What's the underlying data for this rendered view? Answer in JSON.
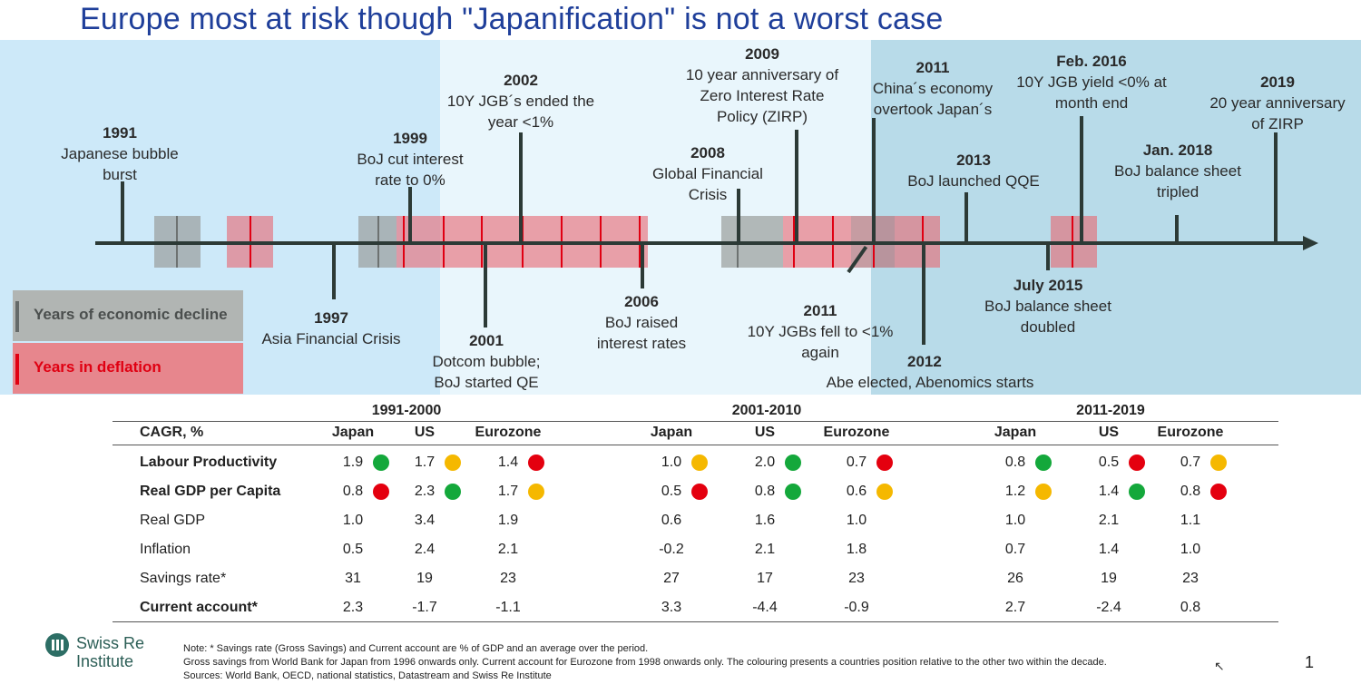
{
  "title": "Europe most at risk though \"Japanification\" is not a worst case",
  "colors": {
    "title": "#1f3f9a",
    "gray_block": "#9ba09e",
    "red_block": "#e86670",
    "deflation_red": "#e00012",
    "good": "#14a83b",
    "neutral": "#f5b800",
    "bad": "#e4000f"
  },
  "events_above": [
    {
      "year": "1991",
      "text": [
        "Japanese bubble",
        "burst"
      ]
    },
    {
      "year": "1999",
      "text": [
        "BoJ cut interest",
        "rate to 0%"
      ]
    },
    {
      "year": "2002",
      "text": [
        "10Y JGB´s ended the",
        "year <1%"
      ]
    },
    {
      "year": "2008",
      "text": [
        "Global Financial",
        "Crisis"
      ]
    },
    {
      "year": "2009",
      "text": [
        "10 year anniversary of",
        "Zero Interest Rate",
        "Policy (ZIRP)"
      ]
    },
    {
      "year": "2011",
      "text": [
        "China´s economy",
        "overtook Japan´s"
      ]
    },
    {
      "year": "2013",
      "text": [
        "BoJ launched QQE"
      ]
    },
    {
      "year": "Feb. 2016",
      "text": [
        "10Y JGB yield <0% at",
        "month end"
      ]
    },
    {
      "year": "Jan. 2018",
      "text": [
        "BoJ balance sheet",
        "tripled"
      ]
    },
    {
      "year": "2019",
      "text": [
        "20 year anniversary",
        "of ZIRP"
      ]
    }
  ],
  "events_below": [
    {
      "year": "1997",
      "text": [
        "Asia Financial Crisis"
      ]
    },
    {
      "year": "2001",
      "text": [
        "Dotcom bubble;",
        "BoJ started QE"
      ]
    },
    {
      "year": "2006",
      "text": [
        "BoJ raised",
        "interest rates"
      ]
    },
    {
      "year": "2011",
      "text": [
        "10Y JGBs fell to <1%",
        "again"
      ]
    },
    {
      "year": "2012",
      "text": [
        "Abe elected, Abenomics starts"
      ]
    },
    {
      "year": "July 2015",
      "text": [
        "BoJ balance sheet",
        "doubled"
      ]
    }
  ],
  "legend": {
    "decline": "Years of economic decline",
    "deflation": "Years in deflation"
  },
  "table": {
    "corner": "CAGR, %",
    "periods": [
      "1991-2000",
      "2001-2010",
      "2011-2019"
    ],
    "countries": [
      "Japan",
      "US",
      "Eurozone"
    ],
    "rows": [
      {
        "label": "Labour Productivity",
        "bold": true,
        "values": [
          "1.9",
          "1.7",
          "1.4",
          "1.0",
          "2.0",
          "0.7",
          "0.8",
          "0.5",
          "0.7"
        ],
        "dots": [
          "green",
          "yellow",
          "red",
          "yellow",
          "green",
          "red",
          "green",
          "red",
          "yellow"
        ]
      },
      {
        "label": "Real GDP per Capita",
        "bold": true,
        "values": [
          "0.8",
          "2.3",
          "1.7",
          "0.5",
          "0.8",
          "0.6",
          "1.2",
          "1.4",
          "0.8"
        ],
        "dots": [
          "red",
          "green",
          "yellow",
          "red",
          "green",
          "yellow",
          "yellow",
          "green",
          "red"
        ]
      },
      {
        "label": "Real GDP",
        "bold": false,
        "values": [
          "1.0",
          "3.4",
          "1.9",
          "0.6",
          "1.6",
          "1.0",
          "1.0",
          "2.1",
          "1.1"
        ]
      },
      {
        "label": "Inflation",
        "bold": false,
        "values": [
          "0.5",
          "2.4",
          "2.1",
          "-0.2",
          "2.1",
          "1.8",
          "0.7",
          "1.4",
          "1.0"
        ]
      },
      {
        "label": "Savings rate*",
        "bold": false,
        "values": [
          "31",
          "19",
          "23",
          "27",
          "17",
          "23",
          "26",
          "19",
          "23"
        ]
      },
      {
        "label": "Current account*",
        "bold": true,
        "values": [
          "2.3",
          "-1.7",
          "-1.1",
          "3.3",
          "-4.4",
          "-0.9",
          "2.7",
          "-2.4",
          "0.8"
        ]
      }
    ]
  },
  "footer": {
    "line1": "Note: * Savings rate (Gross Savings) and Current account are % of GDP and an average over the period.",
    "line2": "Gross savings from World Bank for Japan from 1996 onwards only. Current account for Eurozone from 1998 onwards only. The colouring presents a countries position relative to the other two within the decade.",
    "line3": "Sources: World Bank, OECD, national statistics, Datastream and Swiss Re Institute"
  },
  "logo": {
    "line1": "Swiss Re",
    "line2": "Institute"
  },
  "page_number": "1"
}
